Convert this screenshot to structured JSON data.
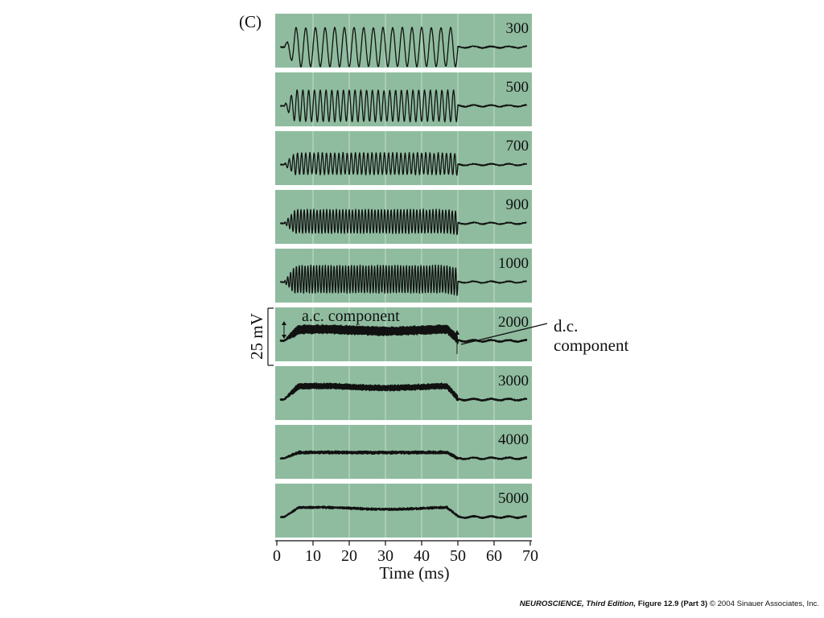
{
  "chart_data": {
    "type": "line",
    "panel_label": "(C)",
    "xlabel": "Time (ms)",
    "xlim": [
      0,
      70
    ],
    "x_ticks": [
      0,
      10,
      20,
      30,
      40,
      50,
      60,
      70
    ],
    "scale_bar_label": "25 mV",
    "stimulus_window_ms": [
      2,
      50
    ],
    "series": [
      {
        "name": "300",
        "ac_cycles": 18,
        "ac_amplitude": 1.0,
        "dc_offset": 0.0
      },
      {
        "name": "500",
        "ac_cycles": 30,
        "ac_amplitude": 0.8,
        "dc_offset": 0.0
      },
      {
        "name": "700",
        "ac_cycles": 42,
        "ac_amplitude": 0.55,
        "dc_offset": 0.05
      },
      {
        "name": "900",
        "ac_cycles": 54,
        "ac_amplitude": 0.6,
        "dc_offset": 0.1
      },
      {
        "name": "1000",
        "ac_cycles": 60,
        "ac_amplitude": 0.7,
        "dc_offset": 0.15
      },
      {
        "name": "2000",
        "ac_cycles": 120,
        "ac_amplitude": 0.2,
        "dc_offset": 0.55
      },
      {
        "name": "3000",
        "ac_cycles": 180,
        "ac_amplitude": 0.12,
        "dc_offset": 0.65
      },
      {
        "name": "4000",
        "ac_cycles": 240,
        "ac_amplitude": 0.05,
        "dc_offset": 0.3
      },
      {
        "name": "5000",
        "ac_cycles": 300,
        "ac_amplitude": 0.03,
        "dc_offset": 0.45
      }
    ],
    "annotations": [
      {
        "text": "a.c. component",
        "series": "2000"
      },
      {
        "text_lines": [
          "d.c.",
          "component"
        ],
        "series": "2000"
      }
    ]
  },
  "credit": {
    "book": "NEUROSCIENCE, Third Edition,",
    "figure": "Figure 12.9 (Part 3)",
    "copyright": "© 2004 Sinauer Associates, Inc."
  }
}
